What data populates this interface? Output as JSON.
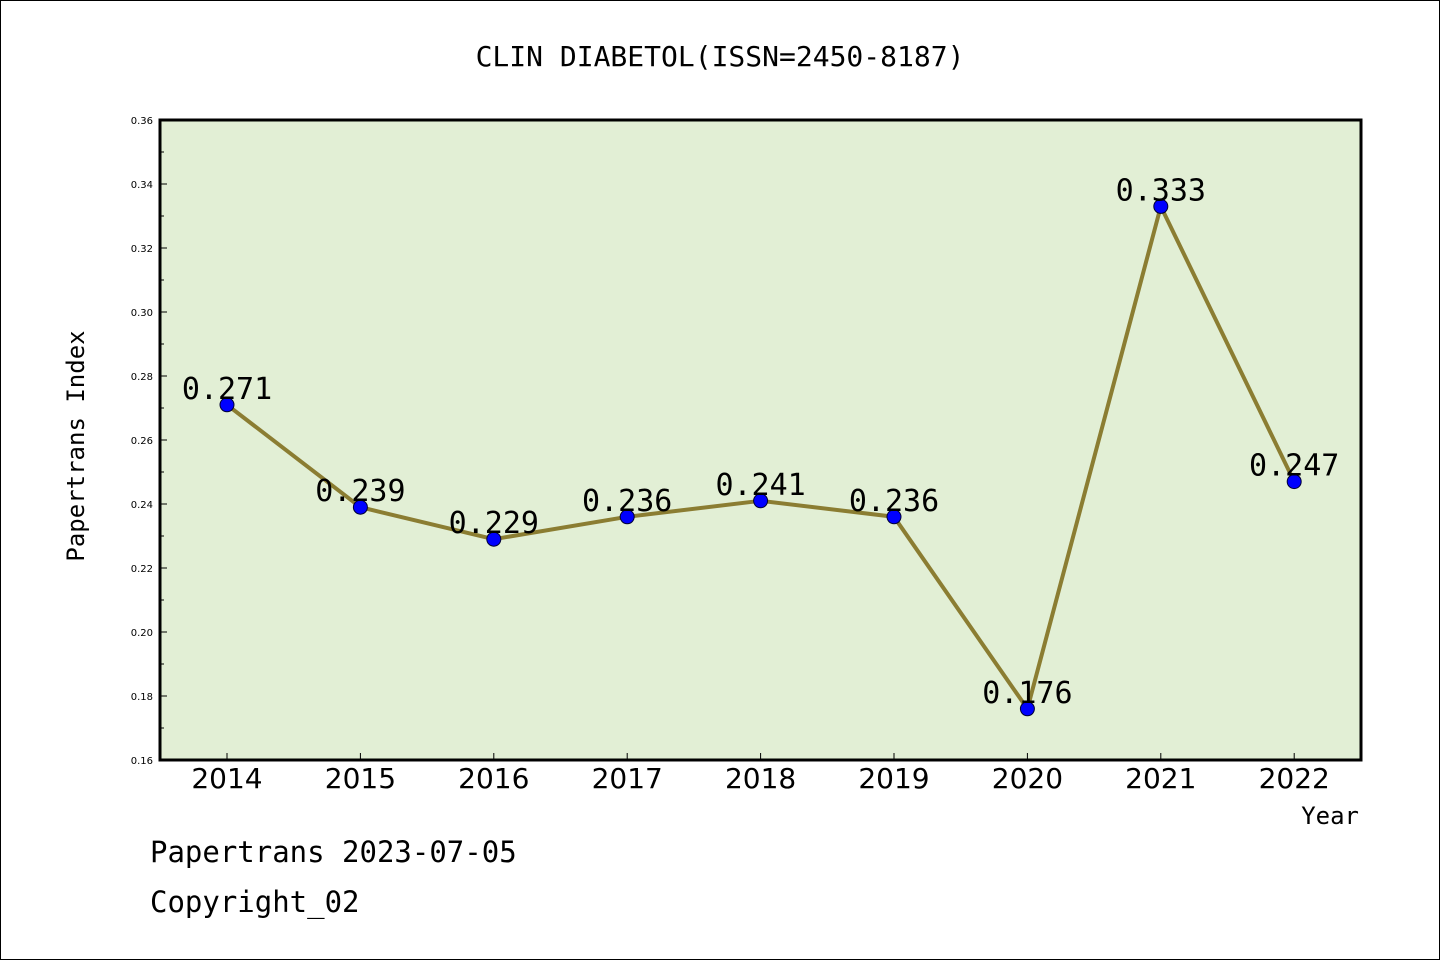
{
  "chart_data": {
    "type": "line",
    "title": "CLIN DIABETOL(ISSN=2450-8187)",
    "xlabel": "Year",
    "ylabel": "Papertrans Index",
    "categories": [
      "2014",
      "2015",
      "2016",
      "2017",
      "2018",
      "2019",
      "2020",
      "2021",
      "2022"
    ],
    "values": [
      0.271,
      0.239,
      0.229,
      0.236,
      0.241,
      0.236,
      0.176,
      0.333,
      0.247
    ],
    "data_labels": [
      "0.271",
      "0.239",
      "0.229",
      "0.236",
      "0.241",
      "0.236",
      "0.176",
      "0.333",
      "0.247"
    ],
    "ylim": [
      0.16,
      0.36
    ],
    "y_ticks": [
      "0.16",
      "0.18",
      "0.20",
      "0.22",
      "0.24",
      "0.26",
      "0.28",
      "0.30",
      "0.32",
      "0.34",
      "0.36"
    ],
    "grid": false,
    "colors": {
      "plot_background": "#e2efd5",
      "line": "#8b7d32",
      "marker": "#0000ff"
    }
  },
  "footer": {
    "line1": "Papertrans 2023-07-05",
    "line2": "Copyright_02"
  }
}
